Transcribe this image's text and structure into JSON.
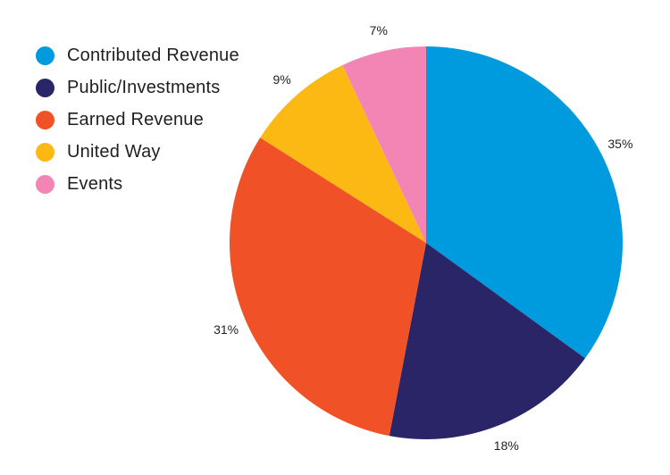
{
  "chart_data": {
    "type": "pie",
    "title": "",
    "legend_position": "top-left",
    "slices": [
      {
        "name": "Contributed Revenue",
        "value": 35,
        "label": "35%",
        "color": "#009ADE"
      },
      {
        "name": "Public/Investments",
        "value": 18,
        "label": "18%",
        "color": "#2A2566"
      },
      {
        "name": "Earned Revenue",
        "value": 31,
        "label": "31%",
        "color": "#F05127"
      },
      {
        "name": "United Way",
        "value": 9,
        "label": "9%",
        "color": "#FDB913"
      },
      {
        "name": "Events",
        "value": 7,
        "label": "7%",
        "color": "#F285B4"
      }
    ]
  }
}
